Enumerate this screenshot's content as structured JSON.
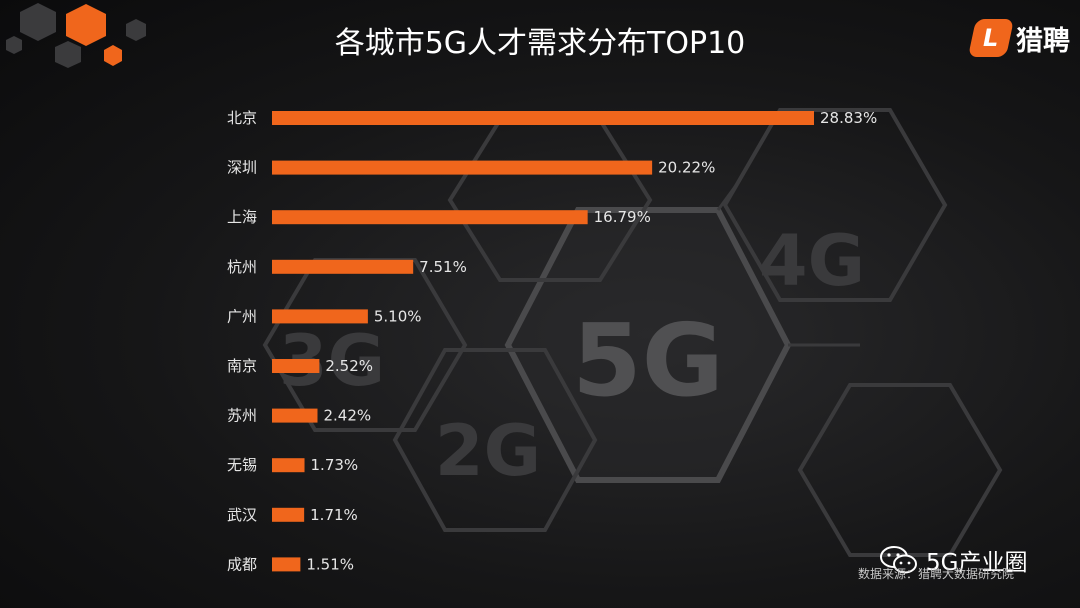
{
  "title": "各城市5G人才需求分布TOP10",
  "logo": {
    "mark": "L",
    "text": "猎聘"
  },
  "background_labels": [
    "5G",
    "4G",
    "3G",
    "2G"
  ],
  "source": "数据来源：猎聘大数据研究院",
  "watermark": {
    "text": "5G产业圈",
    "icon": "wechat-icon"
  },
  "colors": {
    "bar": "#f0661c",
    "background": "#0f0f10",
    "text": "#e6e6e6"
  },
  "chart_data": {
    "type": "bar",
    "orientation": "horizontal",
    "title": "各城市5G人才需求分布TOP10",
    "categories": [
      "北京",
      "深圳",
      "上海",
      "杭州",
      "广州",
      "南京",
      "苏州",
      "无锡",
      "武汉",
      "成都"
    ],
    "values": [
      28.83,
      20.22,
      16.79,
      7.51,
      5.1,
      2.52,
      2.42,
      1.73,
      1.71,
      1.51
    ],
    "value_labels": [
      "28.83%",
      "20.22%",
      "16.79%",
      "7.51%",
      "5.10%",
      "2.52%",
      "2.42%",
      "1.73%",
      "1.71%",
      "1.51%"
    ],
    "unit": "%",
    "grid": false,
    "legend": "none"
  }
}
